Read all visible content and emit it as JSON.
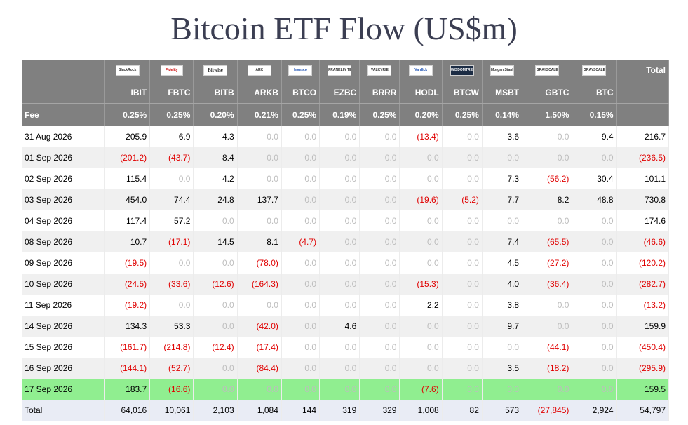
{
  "title": "Bitcoin ETF Flow (US$m)",
  "header": {
    "total_label": "Total",
    "fee_label": "Fee"
  },
  "funds": [
    {
      "logo": "BlackRock",
      "ticker": "IBIT",
      "fee": "0.25%"
    },
    {
      "logo": "Fidelity",
      "ticker": "FBTC",
      "fee": "0.25%"
    },
    {
      "logo": "Bitwise",
      "ticker": "BITB",
      "fee": "0.20%"
    },
    {
      "logo": "ARK",
      "ticker": "ARKB",
      "fee": "0.21%"
    },
    {
      "logo": "Invesco",
      "ticker": "BTCO",
      "fee": "0.25%"
    },
    {
      "logo": "FRANKLIN TEMPLETON",
      "ticker": "EZBC",
      "fee": "0.19%"
    },
    {
      "logo": "VALKYRIE",
      "ticker": "BRRR",
      "fee": "0.25%"
    },
    {
      "logo": "VanEck",
      "ticker": "HODL",
      "fee": "0.20%"
    },
    {
      "logo": "WISDOMTREE",
      "ticker": "BTCW",
      "fee": "0.25%"
    },
    {
      "logo": "Morgan Stanley",
      "ticker": "MSBT",
      "fee": "0.14%"
    },
    {
      "logo": "GRAYSCALE",
      "ticker": "GBTC",
      "fee": "1.50%"
    },
    {
      "logo": "GRAYSCALE",
      "ticker": "BTC",
      "fee": "0.15%"
    }
  ],
  "rows": [
    {
      "date": "31 Aug 2026",
      "values": [
        "205.9",
        "6.9",
        "4.3",
        "0.0",
        "0.0",
        "0.0",
        "0.0",
        "(13.4)",
        "0.0",
        "3.6",
        "0.0",
        "9.4"
      ],
      "total": "216.7"
    },
    {
      "date": "01 Sep 2026",
      "values": [
        "(201.2)",
        "(43.7)",
        "8.4",
        "0.0",
        "0.0",
        "0.0",
        "0.0",
        "0.0",
        "0.0",
        "0.0",
        "0.0",
        "0.0"
      ],
      "total": "(236.5)"
    },
    {
      "date": "02 Sep 2026",
      "values": [
        "115.4",
        "0.0",
        "4.2",
        "0.0",
        "0.0",
        "0.0",
        "0.0",
        "0.0",
        "0.0",
        "7.3",
        "(56.2)",
        "30.4"
      ],
      "total": "101.1"
    },
    {
      "date": "03 Sep 2026",
      "values": [
        "454.0",
        "74.4",
        "24.8",
        "137.7",
        "0.0",
        "0.0",
        "0.0",
        "(19.6)",
        "(5.2)",
        "7.7",
        "8.2",
        "48.8"
      ],
      "total": "730.8"
    },
    {
      "date": "04 Sep 2026",
      "values": [
        "117.4",
        "57.2",
        "0.0",
        "0.0",
        "0.0",
        "0.0",
        "0.0",
        "0.0",
        "0.0",
        "0.0",
        "0.0",
        "0.0"
      ],
      "total": "174.6"
    },
    {
      "date": "08 Sep 2026",
      "values": [
        "10.7",
        "(17.1)",
        "14.5",
        "8.1",
        "(4.7)",
        "0.0",
        "0.0",
        "0.0",
        "0.0",
        "7.4",
        "(65.5)",
        "0.0"
      ],
      "total": "(46.6)"
    },
    {
      "date": "09 Sep 2026",
      "values": [
        "(19.5)",
        "0.0",
        "0.0",
        "(78.0)",
        "0.0",
        "0.0",
        "0.0",
        "0.0",
        "0.0",
        "4.5",
        "(27.2)",
        "0.0"
      ],
      "total": "(120.2)"
    },
    {
      "date": "10 Sep 2026",
      "values": [
        "(24.5)",
        "(33.6)",
        "(12.6)",
        "(164.3)",
        "0.0",
        "0.0",
        "0.0",
        "(15.3)",
        "0.0",
        "4.0",
        "(36.4)",
        "0.0"
      ],
      "total": "(282.7)"
    },
    {
      "date": "11 Sep 2026",
      "values": [
        "(19.2)",
        "0.0",
        "0.0",
        "0.0",
        "0.0",
        "0.0",
        "0.0",
        "2.2",
        "0.0",
        "3.8",
        "0.0",
        "0.0"
      ],
      "total": "(13.2)"
    },
    {
      "date": "14 Sep 2026",
      "values": [
        "134.3",
        "53.3",
        "0.0",
        "(42.0)",
        "0.0",
        "4.6",
        "0.0",
        "0.0",
        "0.0",
        "9.7",
        "0.0",
        "0.0"
      ],
      "total": "159.9"
    },
    {
      "date": "15 Sep 2026",
      "values": [
        "(161.7)",
        "(214.8)",
        "(12.4)",
        "(17.4)",
        "0.0",
        "0.0",
        "0.0",
        "0.0",
        "0.0",
        "0.0",
        "(44.1)",
        "0.0"
      ],
      "total": "(450.4)"
    },
    {
      "date": "16 Sep 2026",
      "values": [
        "(144.1)",
        "(52.7)",
        "0.0",
        "(84.4)",
        "0.0",
        "0.0",
        "0.0",
        "0.0",
        "0.0",
        "3.5",
        "(18.2)",
        "0.0"
      ],
      "total": "(295.9)"
    },
    {
      "date": "17 Sep 2026",
      "values": [
        "183.7",
        "(16.6)",
        "0.0",
        "0.0",
        "0.0",
        "0.0",
        "0.0",
        "(7.6)",
        "0.0",
        "0.0",
        "0.0",
        "0.0"
      ],
      "total": "159.5",
      "highlight": true
    }
  ],
  "totals": {
    "label": "Total",
    "values": [
      "64,016",
      "10,061",
      "2,103",
      "1,084",
      "144",
      "319",
      "329",
      "1,008",
      "82",
      "573",
      "(27,845)",
      "2,924"
    ],
    "total": "54,797"
  },
  "colors": {
    "header_bg": "#808080",
    "negative": "#e00000",
    "zero": "#bdbdbd",
    "highlight_row": "#90ee90",
    "total_row": "#e9ecf5",
    "title": "#3b3e52"
  }
}
